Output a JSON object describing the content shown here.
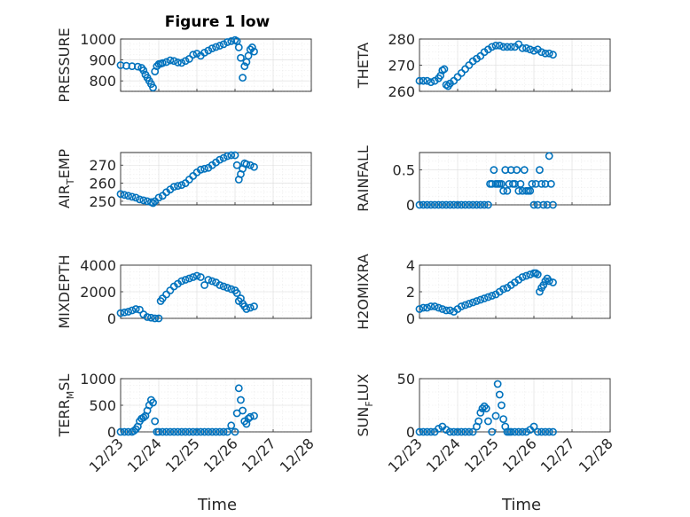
{
  "figure_title": "Figure 1 low",
  "colors": {
    "marker": "#0072bd",
    "axis": "#262626",
    "grid": "#dcdcdc"
  },
  "chart_data": [
    {
      "type": "scatter",
      "title": "Figure 1 low",
      "ylabel": "PRESSURE",
      "ylim": [
        750,
        1000
      ],
      "yticks": [
        800,
        900,
        1000
      ],
      "xlim": [
        "12/23",
        "12/28"
      ],
      "x": [
        0,
        0.15,
        0.3,
        0.45,
        0.55,
        0.6,
        0.65,
        0.7,
        0.75,
        0.8,
        0.85,
        0.9,
        0.95,
        1.0,
        1.05,
        1.1,
        1.2,
        1.3,
        1.4,
        1.5,
        1.6,
        1.7,
        1.8,
        1.9,
        2.0,
        2.1,
        2.2,
        2.3,
        2.4,
        2.5,
        2.6,
        2.7,
        2.8,
        2.9,
        3.0,
        3.05,
        3.1,
        3.15,
        3.2,
        3.25,
        3.3,
        3.35,
        3.4,
        3.45,
        3.5
      ],
      "y": [
        875,
        872,
        870,
        868,
        862,
        850,
        830,
        815,
        800,
        785,
        768,
        845,
        870,
        880,
        882,
        885,
        890,
        898,
        895,
        888,
        886,
        895,
        905,
        925,
        930,
        920,
        935,
        945,
        955,
        962,
        968,
        975,
        985,
        990,
        995,
        990,
        960,
        910,
        815,
        870,
        890,
        920,
        950,
        960,
        940
      ],
      "grid": true
    },
    {
      "type": "scatter",
      "ylabel": "THETA",
      "ylim": [
        260,
        280
      ],
      "yticks": [
        260,
        270,
        280
      ],
      "xlim": [
        "12/23",
        "12/28"
      ],
      "x": [
        0,
        0.1,
        0.2,
        0.3,
        0.4,
        0.5,
        0.55,
        0.6,
        0.65,
        0.7,
        0.75,
        0.8,
        0.9,
        1.0,
        1.1,
        1.2,
        1.3,
        1.4,
        1.5,
        1.6,
        1.7,
        1.8,
        1.9,
        2.0,
        2.1,
        2.2,
        2.3,
        2.4,
        2.5,
        2.6,
        2.7,
        2.8,
        2.9,
        3.0,
        3.1,
        3.2,
        3.3,
        3.4,
        3.5
      ],
      "y": [
        264,
        264,
        264,
        263.5,
        264,
        265,
        266,
        268,
        268.5,
        262.5,
        262,
        263,
        264,
        265.5,
        267,
        268.5,
        270,
        271.5,
        272.5,
        273.5,
        275,
        276,
        277,
        277.5,
        277.5,
        277,
        277,
        277,
        277,
        278,
        276.5,
        276.5,
        276,
        275.5,
        276,
        275,
        274.5,
        274.5,
        274
      ],
      "grid": true
    },
    {
      "type": "scatter",
      "ylabel": "AIR_TEMP",
      "ylim": [
        248,
        277
      ],
      "yticks": [
        250,
        260,
        270
      ],
      "xlim": [
        "12/23",
        "12/28"
      ],
      "x": [
        0,
        0.1,
        0.2,
        0.3,
        0.4,
        0.5,
        0.6,
        0.7,
        0.8,
        0.85,
        0.9,
        1.0,
        1.1,
        1.2,
        1.3,
        1.4,
        1.5,
        1.6,
        1.7,
        1.8,
        1.9,
        2.0,
        2.1,
        2.2,
        2.3,
        2.4,
        2.5,
        2.6,
        2.7,
        2.8,
        2.9,
        3.0,
        3.05,
        3.1,
        3.15,
        3.2,
        3.25,
        3.3,
        3.4,
        3.5
      ],
      "y": [
        254,
        253.5,
        253,
        252.5,
        252,
        251,
        250.5,
        250,
        249.5,
        249,
        250,
        252,
        253,
        255,
        256.5,
        258,
        258.5,
        259,
        260,
        262,
        264,
        266,
        267.5,
        268,
        268.5,
        270,
        271.5,
        273,
        274,
        275,
        275.5,
        275.5,
        270,
        262,
        265,
        268,
        271,
        270.5,
        270,
        269
      ],
      "grid": true
    },
    {
      "type": "scatter",
      "ylabel": "RAINFALL",
      "ylim": [
        0,
        0.75
      ],
      "yticks": [
        0,
        0.5
      ],
      "xlim": [
        "12/23",
        "12/28"
      ],
      "x": [
        0,
        0.1,
        0.2,
        0.3,
        0.4,
        0.5,
        0.6,
        0.7,
        0.8,
        0.9,
        1.0,
        1.1,
        1.2,
        1.3,
        1.4,
        1.5,
        1.6,
        1.7,
        1.8,
        1.85,
        1.9,
        1.95,
        2.0,
        2.05,
        2.1,
        2.15,
        2.2,
        2.25,
        2.3,
        2.35,
        2.4,
        2.45,
        2.5,
        2.55,
        2.6,
        2.65,
        2.7,
        2.75,
        2.8,
        2.85,
        2.9,
        2.95,
        3.0,
        3.05,
        3.1,
        3.15,
        3.2,
        3.25,
        3.3,
        3.35,
        3.4,
        3.45,
        3.5
      ],
      "y": [
        0,
        0,
        0,
        0,
        0,
        0,
        0,
        0,
        0,
        0,
        0,
        0,
        0,
        0,
        0,
        0,
        0,
        0,
        0,
        0.3,
        0.3,
        0.5,
        0.3,
        0.3,
        0.3,
        0.3,
        0.2,
        0.5,
        0.2,
        0.3,
        0.5,
        0.3,
        0.3,
        0.5,
        0.2,
        0.3,
        0.2,
        0.5,
        0.2,
        0.2,
        0.2,
        0.3,
        0,
        0.3,
        0,
        0.5,
        0.3,
        0,
        0.3,
        0,
        0.7,
        0.3,
        0
      ],
      "grid": true
    },
    {
      "type": "scatter",
      "ylabel": "MIXDEPTH",
      "ylim": [
        0,
        4000
      ],
      "yticks": [
        0,
        2000,
        4000
      ],
      "xlim": [
        "12/23",
        "12/28"
      ],
      "x": [
        0,
        0.1,
        0.2,
        0.3,
        0.4,
        0.5,
        0.6,
        0.7,
        0.8,
        0.9,
        1.0,
        1.05,
        1.1,
        1.2,
        1.3,
        1.4,
        1.5,
        1.6,
        1.7,
        1.8,
        1.9,
        2.0,
        2.1,
        2.2,
        2.3,
        2.4,
        2.5,
        2.6,
        2.7,
        2.8,
        2.9,
        3.0,
        3.05,
        3.1,
        3.15,
        3.2,
        3.25,
        3.3,
        3.4,
        3.5
      ],
      "y": [
        400,
        450,
        500,
        600,
        700,
        650,
        300,
        100,
        50,
        0,
        0,
        1300,
        1500,
        1800,
        2100,
        2400,
        2600,
        2800,
        2900,
        3000,
        3100,
        3200,
        3100,
        2500,
        2900,
        2800,
        2700,
        2500,
        2400,
        2300,
        2200,
        2100,
        1900,
        1300,
        1500,
        1100,
        900,
        700,
        800,
        900
      ],
      "grid": true
    },
    {
      "type": "scatter",
      "ylabel": "H2OMIXRA",
      "ylim": [
        0,
        4
      ],
      "yticks": [
        0,
        2,
        4
      ],
      "xlim": [
        "12/23",
        "12/28"
      ],
      "x": [
        0,
        0.1,
        0.2,
        0.3,
        0.4,
        0.5,
        0.6,
        0.7,
        0.8,
        0.9,
        1.0,
        1.1,
        1.2,
        1.3,
        1.4,
        1.5,
        1.6,
        1.7,
        1.8,
        1.9,
        2.0,
        2.1,
        2.2,
        2.3,
        2.4,
        2.5,
        2.6,
        2.7,
        2.8,
        2.9,
        3.0,
        3.05,
        3.1,
        3.15,
        3.2,
        3.25,
        3.3,
        3.35,
        3.4,
        3.5
      ],
      "y": [
        0.7,
        0.8,
        0.8,
        0.9,
        0.9,
        0.8,
        0.7,
        0.6,
        0.6,
        0.5,
        0.7,
        0.9,
        1.0,
        1.1,
        1.2,
        1.3,
        1.4,
        1.5,
        1.6,
        1.7,
        1.8,
        2.0,
        2.2,
        2.3,
        2.5,
        2.7,
        2.9,
        3.1,
        3.2,
        3.3,
        3.4,
        3.4,
        3.3,
        2.0,
        2.3,
        2.5,
        2.8,
        3.0,
        2.8,
        2.7
      ],
      "grid": true
    },
    {
      "type": "scatter",
      "ylabel": "TERR_MSL",
      "ylim": [
        0,
        1000
      ],
      "yticks": [
        0,
        500,
        1000
      ],
      "xlim": [
        "12/23",
        "12/28"
      ],
      "x": [
        0,
        0.1,
        0.2,
        0.3,
        0.35,
        0.4,
        0.45,
        0.5,
        0.55,
        0.6,
        0.65,
        0.7,
        0.75,
        0.8,
        0.85,
        0.9,
        0.95,
        1.0,
        1.1,
        1.2,
        1.3,
        1.4,
        1.5,
        1.6,
        1.7,
        1.8,
        1.9,
        2.0,
        2.1,
        2.2,
        2.3,
        2.4,
        2.5,
        2.6,
        2.7,
        2.8,
        2.9,
        3.0,
        3.05,
        3.1,
        3.15,
        3.2,
        3.25,
        3.3,
        3.35,
        3.4,
        3.5
      ],
      "y": [
        0,
        0,
        0,
        0,
        20,
        50,
        100,
        200,
        250,
        270,
        300,
        400,
        500,
        600,
        550,
        200,
        0,
        0,
        0,
        0,
        0,
        0,
        0,
        0,
        0,
        0,
        0,
        0,
        0,
        0,
        0,
        0,
        0,
        0,
        0,
        0,
        120,
        0,
        350,
        820,
        600,
        400,
        200,
        150,
        250,
        280,
        300
      ],
      "grid": true
    },
    {
      "type": "scatter",
      "ylabel": "SUN_FLUX",
      "ylim": [
        0,
        50
      ],
      "yticks": [
        0,
        50
      ],
      "xlim": [
        "12/23",
        "12/28"
      ],
      "x": [
        0,
        0.1,
        0.2,
        0.3,
        0.4,
        0.5,
        0.6,
        0.7,
        0.8,
        0.9,
        1.0,
        1.1,
        1.2,
        1.3,
        1.4,
        1.5,
        1.55,
        1.6,
        1.65,
        1.7,
        1.75,
        1.8,
        1.9,
        2.0,
        2.05,
        2.1,
        2.15,
        2.2,
        2.25,
        2.3,
        2.35,
        2.4,
        2.5,
        2.6,
        2.7,
        2.8,
        2.9,
        3.0,
        3.1,
        3.2,
        3.3,
        3.4,
        3.5
      ],
      "y": [
        0,
        0,
        0,
        0,
        0,
        3,
        5,
        2,
        0,
        0,
        0,
        0,
        0,
        0,
        0,
        5,
        10,
        18,
        22,
        24,
        22,
        10,
        0,
        15,
        45,
        35,
        25,
        12,
        5,
        0,
        0,
        0,
        0,
        0,
        0,
        0,
        2,
        5,
        0,
        0,
        0,
        0,
        0
      ],
      "grid": true
    }
  ],
  "shared": {
    "xticks": [
      "12/23",
      "12/24",
      "12/25",
      "12/26",
      "12/27",
      "12/28"
    ],
    "xlabel": "Time"
  }
}
